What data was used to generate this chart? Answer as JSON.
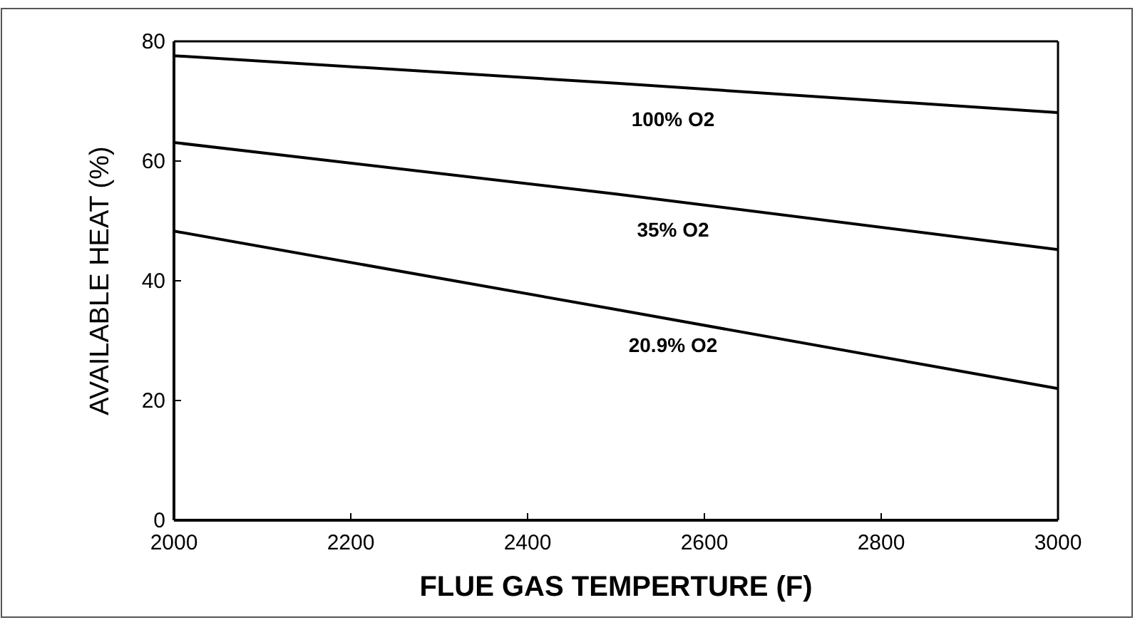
{
  "chart_data": {
    "type": "line",
    "xlabel": "FLUE GAS TEMPERTURE (F)",
    "ylabel": "AVAILABLE HEAT (%)",
    "x": [
      2000,
      2500,
      3000
    ],
    "series": [
      {
        "name": "100% O2",
        "color": "#000000",
        "values": [
          77.6,
          73,
          68.1
        ]
      },
      {
        "name": "35% O2",
        "color": "#000000",
        "values": [
          63.1,
          54.5,
          45.2
        ]
      },
      {
        "name": "20.9% O2",
        "color": "#000000",
        "values": [
          48.3,
          35.2,
          22.0
        ]
      }
    ],
    "xlim": [
      2000,
      3000
    ],
    "xticks": [
      2000,
      2200,
      2400,
      2600,
      2800,
      3000
    ],
    "ylim": [
      0,
      80
    ],
    "yticks": [
      0,
      20,
      40,
      60,
      80
    ],
    "grid": false,
    "legend": false,
    "marker": "none",
    "line_style": "solid"
  }
}
